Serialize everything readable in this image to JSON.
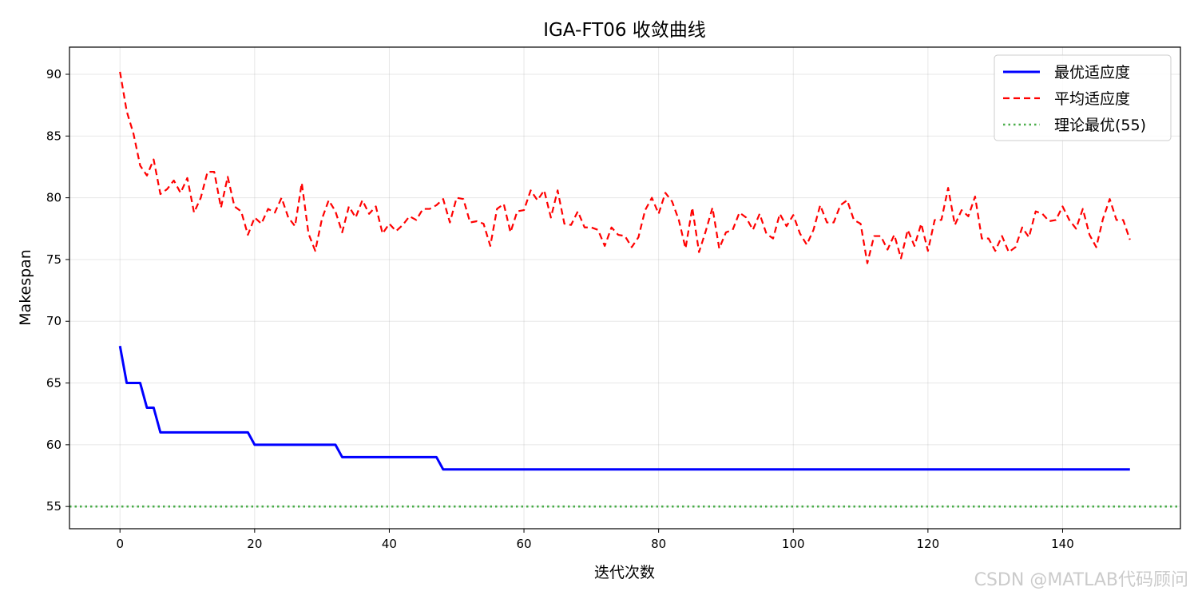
{
  "chart_data": {
    "type": "line",
    "title": "IGA-FT06 收敛曲线",
    "xlabel": "迭代次数",
    "ylabel": "Makespan",
    "xlim": [
      -7.5,
      157.5
    ],
    "ylim": [
      53.2,
      92.2
    ],
    "xticks": [
      0,
      20,
      40,
      60,
      80,
      100,
      120,
      140
    ],
    "yticks": [
      55,
      60,
      65,
      70,
      75,
      80,
      85,
      90
    ],
    "grid": true,
    "legend_position": "top-right",
    "series": [
      {
        "name": "最优适应度",
        "style": "solid",
        "color": "#0000ff",
        "x": [
          0,
          1,
          3,
          4,
          5,
          6,
          19,
          20,
          32,
          33,
          47,
          48,
          150
        ],
        "y": [
          68,
          65,
          65,
          63,
          63,
          61,
          61,
          60,
          60,
          59,
          59,
          58,
          58
        ]
      },
      {
        "name": "平均适应度",
        "style": "dashed",
        "color": "#ff0000",
        "x_start": 0,
        "values": [
          90.2,
          87.0,
          85.2,
          82.6,
          81.8,
          83.1,
          80.3,
          80.7,
          81.4,
          80.4,
          81.6,
          78.8,
          80.0,
          82.1,
          82.1,
          79.2,
          81.7,
          79.3,
          78.9,
          77.0,
          78.4,
          77.9,
          79.1,
          78.8,
          80.0,
          78.4,
          77.7,
          81.2,
          77.1,
          75.7,
          78.3,
          79.8,
          78.9,
          77.2,
          79.3,
          78.4,
          79.8,
          78.7,
          79.3,
          77.1,
          77.9,
          77.3,
          77.8,
          78.5,
          78.2,
          79.1,
          79.1,
          79.4,
          79.9,
          78.0,
          80.0,
          79.9,
          78.0,
          78.1,
          77.9,
          76.1,
          79.1,
          79.5,
          77.2,
          78.9,
          79.0,
          80.6,
          79.8,
          80.6,
          78.4,
          80.6,
          77.9,
          77.8,
          78.9,
          77.6,
          77.6,
          77.4,
          76.1,
          77.6,
          77.0,
          76.9,
          76.0,
          76.8,
          79.0,
          80.0,
          78.7,
          80.4,
          79.7,
          78.2,
          75.9,
          79.2,
          75.6,
          77.3,
          79.2,
          75.9,
          77.2,
          77.4,
          78.8,
          78.4,
          77.4,
          78.7,
          77.1,
          76.7,
          78.7,
          77.7,
          78.6,
          77.1,
          76.2,
          77.4,
          79.4,
          78.0,
          78.0,
          79.4,
          79.8,
          78.2,
          77.9,
          74.7,
          76.9,
          76.9,
          75.8,
          77.0,
          75.1,
          77.4,
          76.1,
          77.9,
          75.7,
          78.2,
          78.2,
          80.8,
          77.8,
          79.0,
          78.5,
          80.1,
          76.7,
          76.7,
          75.7,
          76.9,
          75.6,
          76.0,
          77.6,
          76.8,
          78.9,
          78.7,
          78.1,
          78.2,
          79.3,
          78.2,
          77.5,
          79.1,
          77.0,
          76.0,
          78.3,
          79.9,
          78.2,
          78.2,
          76.6
        ]
      },
      {
        "name": "理论最优(55)",
        "style": "dotted",
        "color": "#2ca02c",
        "y_constant": 55
      }
    ]
  },
  "watermark": "CSDN @MATLAB代码顾问"
}
